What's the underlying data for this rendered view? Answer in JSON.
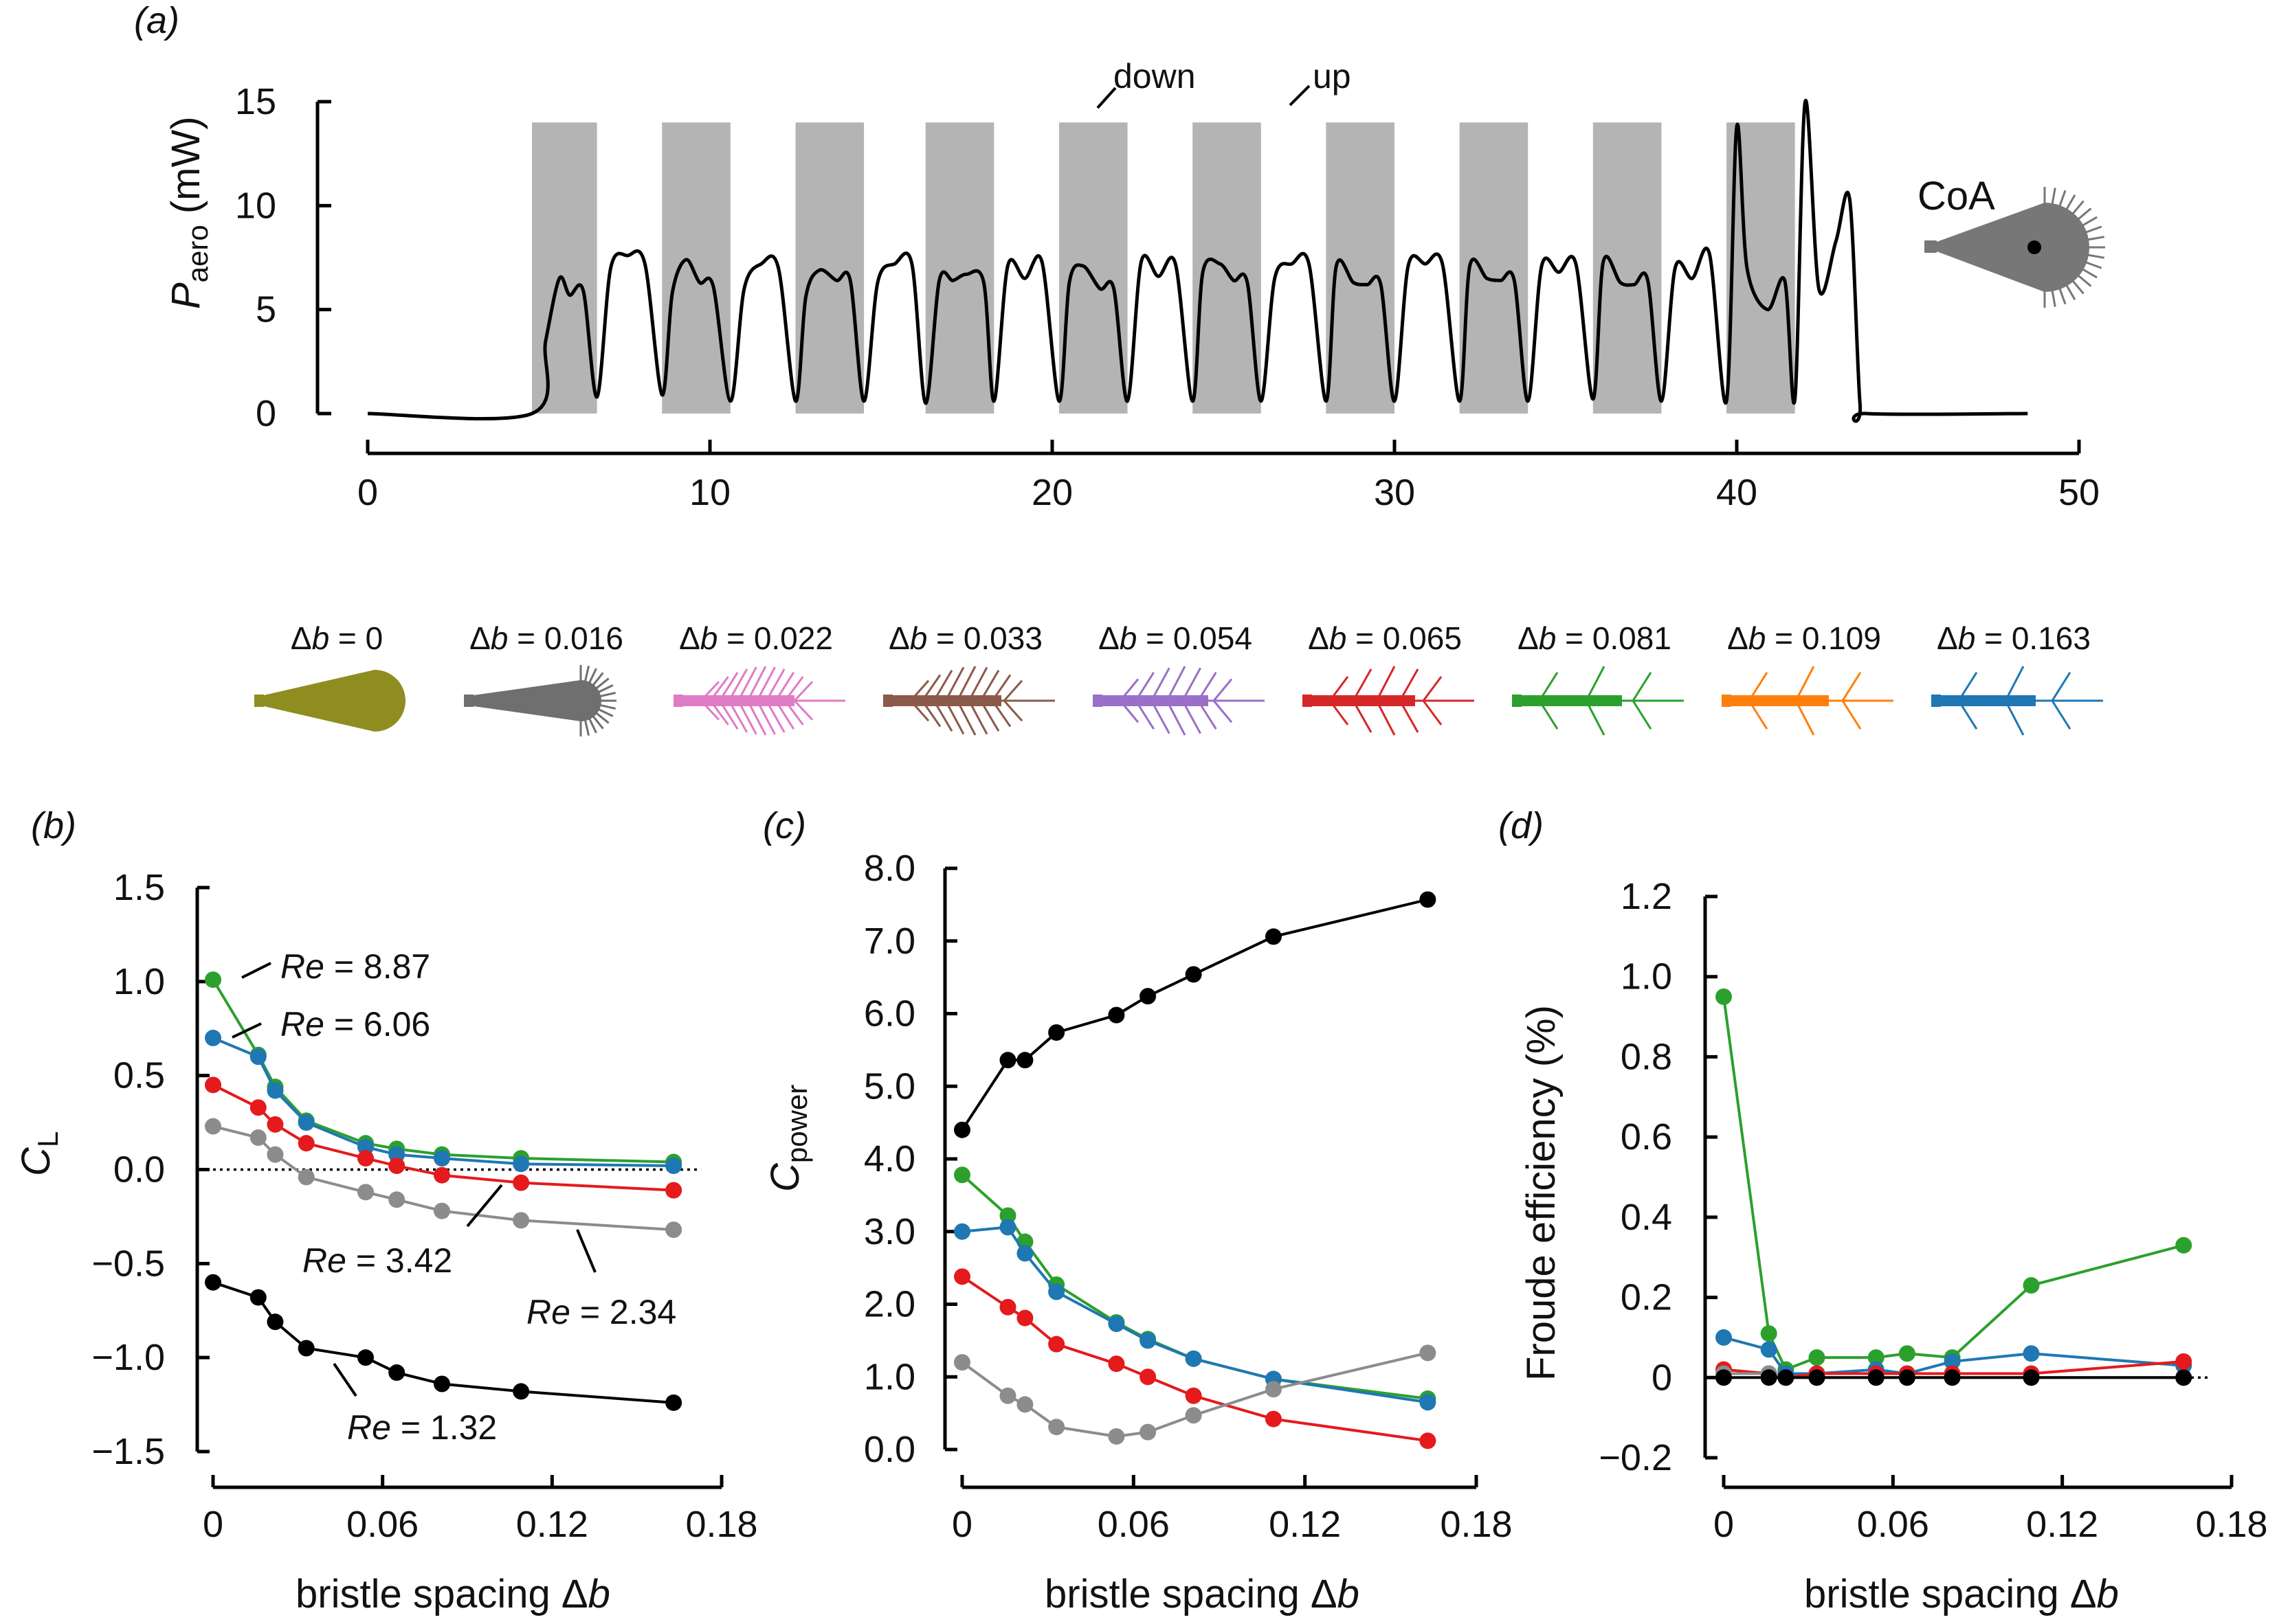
{
  "panel_a": {
    "label": "(a)",
    "ylabel_main": "P",
    "ylabel_sub": "aero",
    "ylabel_unit": " (mW)",
    "annotation_down": "down",
    "annotation_up": "up",
    "coa_label": "CoA"
  },
  "legend": {
    "symbol": "Δ",
    "var": "b",
    "items": [
      {
        "text": " = 0",
        "color": "#8f8d20",
        "kind": "solid"
      },
      {
        "text": " = 0.016",
        "color": "#6f6f6f",
        "kind": "fan"
      },
      {
        "text": " = 0.022",
        "color": "#e07bc6",
        "kind": "bristle"
      },
      {
        "text": " = 0.033",
        "color": "#8b5a4a",
        "kind": "bristle"
      },
      {
        "text": " = 0.054",
        "color": "#9a6fc9",
        "kind": "bristle"
      },
      {
        "text": " = 0.065",
        "color": "#d62728",
        "kind": "bristle"
      },
      {
        "text": " = 0.081",
        "color": "#2ca02c",
        "kind": "bristle"
      },
      {
        "text": " = 0.109",
        "color": "#ff7f0e",
        "kind": "bristle"
      },
      {
        "text": " = 0.163",
        "color": "#1f77b4",
        "kind": "bristle"
      }
    ]
  },
  "panel_b": {
    "label": "(b)",
    "ylabel": "C",
    "ylabel_sub": "L",
    "xlabel": "bristle spacing Δ",
    "xlabel_var": "b"
  },
  "panel_c": {
    "label": "(c)",
    "ylabel": "C",
    "ylabel_sub": "power",
    "xlabel": "bristle spacing Δ",
    "xlabel_var": "b"
  },
  "panel_d": {
    "label": "(d)",
    "ylabel": "Froude efficiency (%)",
    "xlabel": "bristle spacing Δ",
    "xlabel_var": "b"
  },
  "re_labels": [
    {
      "re": "Re",
      "value": " = 8.87"
    },
    {
      "re": "Re",
      "value": " = 6.06"
    },
    {
      "re": "Re",
      "value": " = 3.42"
    },
    {
      "re": "Re",
      "value": " = 2.34"
    },
    {
      "re": "Re",
      "value": " = 1.32"
    }
  ],
  "chart_data": [
    {
      "type": "line",
      "title": "(a)",
      "xlabel": "",
      "ylabel": "Paero (mW)",
      "xlim": [
        0,
        50
      ],
      "ylim": [
        0,
        15
      ],
      "xticks": [
        0,
        10,
        20,
        30,
        40,
        50
      ],
      "yticks": [
        0,
        5,
        10,
        15
      ],
      "shaded_intervals_label": "down",
      "shaded_intervals": [
        [
          4.8,
          6.7
        ],
        [
          8.6,
          10.6
        ],
        [
          12.5,
          14.5
        ],
        [
          16.3,
          18.3
        ],
        [
          20.2,
          22.2
        ],
        [
          24.1,
          26.1
        ],
        [
          28.0,
          30.0
        ],
        [
          31.9,
          33.9
        ],
        [
          35.8,
          37.8
        ],
        [
          39.7,
          41.7
        ]
      ],
      "series": [
        {
          "name": "Paero",
          "x": [
            0,
            4.8,
            5.2,
            5.6,
            5.9,
            6.3,
            6.7,
            7.1,
            7.6,
            8.1,
            8.6,
            8.9,
            9.3,
            9.7,
            10.1,
            10.6,
            11.0,
            11.5,
            12.0,
            12.5,
            12.8,
            13.2,
            13.7,
            14.1,
            14.5,
            14.9,
            15.4,
            15.9,
            16.3,
            16.7,
            17.1,
            17.5,
            18.0,
            18.3,
            18.7,
            19.2,
            19.7,
            20.2,
            20.5,
            20.9,
            21.4,
            21.8,
            22.2,
            22.6,
            23.1,
            23.6,
            24.1,
            24.4,
            24.9,
            25.3,
            25.7,
            26.1,
            26.5,
            27.0,
            27.5,
            28.0,
            28.3,
            28.8,
            29.2,
            29.6,
            30.0,
            30.4,
            30.9,
            31.4,
            31.9,
            32.2,
            32.7,
            33.1,
            33.5,
            33.9,
            34.3,
            34.8,
            35.3,
            35.8,
            36.1,
            36.6,
            37.0,
            37.4,
            37.8,
            38.2,
            38.7,
            39.2,
            39.7,
            40.0,
            40.3,
            40.9,
            41.4,
            41.7,
            42.0,
            42.4,
            42.9,
            43.3,
            43.6,
            43.8,
            48.5
          ],
          "y": [
            0,
            0,
            3.5,
            6.5,
            5.7,
            5.9,
            0.8,
            7.0,
            7.6,
            7.2,
            0.9,
            5.8,
            7.4,
            6.3,
            6.1,
            0.6,
            6.0,
            7.2,
            7.0,
            0.6,
            5.6,
            6.9,
            6.4,
            6.4,
            0.6,
            6.3,
            7.2,
            7.2,
            0.5,
            6.4,
            6.4,
            6.7,
            6.3,
            0.6,
            7.1,
            6.5,
            7.3,
            0.6,
            6.3,
            7.1,
            6.0,
            6.0,
            0.6,
            7.3,
            6.6,
            7.2,
            0.6,
            6.8,
            7.2,
            6.4,
            6.3,
            0.6,
            6.5,
            7.2,
            7.2,
            0.6,
            7.1,
            6.3,
            6.2,
            6.2,
            0.6,
            7.1,
            7.2,
            7.2,
            0.6,
            7.1,
            6.5,
            6.4,
            6.4,
            0.6,
            7.1,
            6.8,
            7.2,
            0.7,
            7.3,
            6.3,
            6.2,
            6.4,
            0.6,
            7.0,
            6.5,
            7.7,
            0.6,
            13.8,
            7.0,
            5.0,
            6.4,
            0.7,
            15.0,
            6.0,
            8.3,
            10.3,
            0.5,
            0,
            0
          ]
        }
      ]
    },
    {
      "type": "line",
      "title": "(b)",
      "xlabel": "bristle spacing Δb",
      "ylabel": "CL",
      "xlim": [
        0,
        0.18
      ],
      "ylim": [
        -1.5,
        1.5
      ],
      "xticks": [
        0,
        0.06,
        0.12,
        0.18
      ],
      "yticks": [
        -1.5,
        -1.0,
        -0.5,
        0.0,
        0.5,
        1.0,
        1.5
      ],
      "x": [
        0,
        0.016,
        0.022,
        0.033,
        0.054,
        0.065,
        0.081,
        0.109,
        0.163
      ],
      "series": [
        {
          "name": "Re = 8.87",
          "color": "#2ca02c",
          "values": [
            1.01,
            0.61,
            0.44,
            0.26,
            0.14,
            0.11,
            0.08,
            0.06,
            0.04
          ]
        },
        {
          "name": "Re = 6.06",
          "color": "#1f77b4",
          "values": [
            0.7,
            0.6,
            0.42,
            0.25,
            0.12,
            0.08,
            0.06,
            0.03,
            0.02
          ]
        },
        {
          "name": "Re = 3.42",
          "color": "#e41a1c",
          "values": [
            0.45,
            0.33,
            0.24,
            0.14,
            0.06,
            0.02,
            -0.03,
            -0.07,
            -0.11
          ]
        },
        {
          "name": "Re = 2.34",
          "color": "#8c8c8c",
          "values": [
            0.23,
            0.17,
            0.08,
            -0.04,
            -0.12,
            -0.16,
            -0.22,
            -0.27,
            -0.32
          ]
        },
        {
          "name": "Re = 1.32",
          "color": "#000000",
          "values": [
            -0.6,
            -0.68,
            -0.81,
            -0.95,
            -1.0,
            -1.08,
            -1.14,
            -1.18,
            -1.24
          ]
        }
      ],
      "reference_line": 0
    },
    {
      "type": "line",
      "title": "(c)",
      "xlabel": "bristle spacing Δb",
      "ylabel": "Cpower",
      "xlim": [
        0,
        0.18
      ],
      "ylim": [
        0,
        8.0
      ],
      "xticks": [
        0,
        0.06,
        0.12,
        0.18
      ],
      "yticks": [
        0,
        1.0,
        2.0,
        3.0,
        4.0,
        5.0,
        6.0,
        7.0,
        8.0
      ],
      "x": [
        0,
        0.016,
        0.022,
        0.033,
        0.054,
        0.065,
        0.081,
        0.109,
        0.163
      ],
      "series": [
        {
          "name": "Re = 1.32",
          "color": "#000000",
          "values": [
            4.4,
            5.36,
            5.36,
            5.74,
            5.98,
            6.24,
            6.54,
            7.06,
            7.57
          ]
        },
        {
          "name": "Re = 8.87",
          "color": "#2ca02c",
          "values": [
            3.78,
            3.22,
            2.86,
            2.27,
            1.75,
            1.52,
            1.25,
            0.97,
            0.7
          ]
        },
        {
          "name": "Re = 6.06",
          "color": "#1f77b4",
          "values": [
            3.0,
            3.06,
            2.7,
            2.17,
            1.73,
            1.5,
            1.25,
            0.97,
            0.65
          ]
        },
        {
          "name": "Re = 3.42",
          "color": "#e41a1c",
          "values": [
            2.38,
            1.96,
            1.81,
            1.45,
            1.18,
            1.0,
            0.74,
            0.42,
            0.12
          ]
        },
        {
          "name": "Re = 2.34",
          "color": "#8c8c8c",
          "values": [
            1.2,
            0.74,
            0.62,
            0.31,
            0.18,
            0.24,
            0.47,
            0.83,
            1.33
          ]
        }
      ]
    },
    {
      "type": "line",
      "title": "(d)",
      "xlabel": "bristle spacing Δb",
      "ylabel": "Froude efficiency (%)",
      "xlim": [
        0,
        0.18
      ],
      "ylim": [
        -0.2,
        1.2
      ],
      "xticks": [
        0,
        0.06,
        0.12,
        0.18
      ],
      "yticks": [
        -0.2,
        0,
        0.2,
        0.4,
        0.6,
        0.8,
        1.0,
        1.2
      ],
      "x": [
        0,
        0.016,
        0.022,
        0.033,
        0.054,
        0.065,
        0.081,
        0.109,
        0.163
      ],
      "series": [
        {
          "name": "Re = 8.87",
          "color": "#2ca02c",
          "values": [
            0.95,
            0.11,
            0.02,
            0.05,
            0.05,
            0.06,
            0.05,
            0.23,
            0.33
          ]
        },
        {
          "name": "Re = 6.06",
          "color": "#1f77b4",
          "values": [
            0.1,
            0.07,
            0.01,
            0.01,
            0.02,
            0.01,
            0.04,
            0.06,
            0.03
          ]
        },
        {
          "name": "Re = 3.42",
          "color": "#e41a1c",
          "values": [
            0.02,
            0.01,
            0.0,
            0.01,
            0.01,
            0.01,
            0.01,
            0.01,
            0.04
          ]
        },
        {
          "name": "Re = 2.34",
          "color": "#8c8c8c",
          "values": [
            0.01,
            0.01,
            0.0,
            0.0,
            0.0,
            0.0,
            0.0,
            0.0,
            0.0
          ]
        },
        {
          "name": "Re = 1.32",
          "color": "#000000",
          "values": [
            0.0,
            0.0,
            0.0,
            0.0,
            0.0,
            0.0,
            0.0,
            0.0,
            0.0
          ]
        }
      ],
      "reference_line": 0
    }
  ]
}
